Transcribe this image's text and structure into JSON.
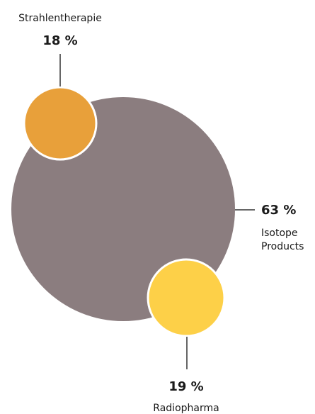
{
  "chart_data": {
    "type": "bubble",
    "title": "",
    "categories": [
      "Isotope Products",
      "Strahlentherapie",
      "Radiopharma"
    ],
    "values": [
      63,
      18,
      19
    ],
    "unit": "%",
    "labels": {
      "isotope": {
        "value": "63 %",
        "name_line1": "Isotope",
        "name_line2": "Products"
      },
      "strahlen": {
        "value": "18 %",
        "name": "Strahlentherapie"
      },
      "radio": {
        "value": "19 %",
        "name": "Radiopharma"
      }
    },
    "colors": {
      "isotope": "#8b7d7f",
      "strahlen": "#e8a03a",
      "radio": "#fdd048",
      "leader": "#333333"
    }
  }
}
